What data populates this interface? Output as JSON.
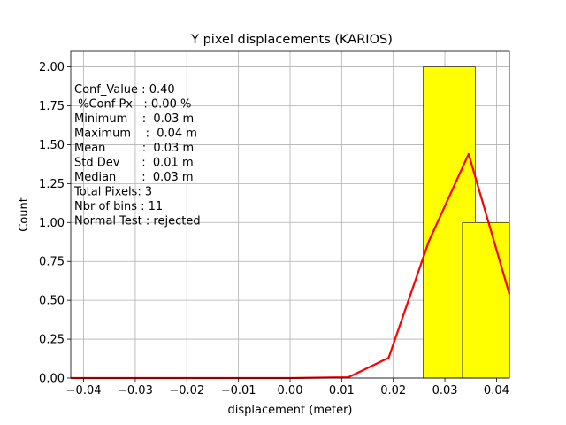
{
  "chart_data": {
    "type": "bar",
    "title": "Y pixel displacements (KARIOS)",
    "xlabel": "displacement (meter)",
    "ylabel": "Count",
    "xlim": [
      -0.0425,
      0.0425
    ],
    "ylim": [
      0,
      2.1
    ],
    "x_ticks": [
      -0.04,
      -0.03,
      -0.02,
      -0.01,
      0.0,
      0.01,
      0.02,
      0.03,
      0.04
    ],
    "x_tick_labels": [
      "−0.04",
      "−0.03",
      "−0.02",
      "−0.01",
      "0.00",
      "0.01",
      "0.02",
      "0.03",
      "0.04"
    ],
    "y_ticks": [
      0,
      0.25,
      0.5,
      0.75,
      1.0,
      1.25,
      1.5,
      1.75,
      2.0
    ],
    "y_tick_labels": [
      "0.00",
      "0.25",
      "0.50",
      "0.75",
      "1.00",
      "1.25",
      "1.50",
      "1.75",
      "2.00"
    ],
    "grid": true,
    "bar_color": "#ffff00",
    "bar_edge_color": "#000000",
    "bars": [
      {
        "x0": 0.0258,
        "x1": 0.0359,
        "count": 2
      },
      {
        "x0": 0.0334,
        "x1": 0.0425,
        "count": 1
      }
    ],
    "curve": {
      "color": "#ff0000",
      "points": [
        [
          -0.0425,
          0.0
        ],
        [
          -0.03,
          0.0
        ],
        [
          -0.02,
          0.0
        ],
        [
          -0.01,
          0.0
        ],
        [
          0.0,
          0.0
        ],
        [
          0.0113,
          0.005
        ],
        [
          0.0191,
          0.13
        ],
        [
          0.0269,
          0.88
        ],
        [
          0.0346,
          1.44
        ],
        [
          0.0425,
          0.54
        ]
      ]
    },
    "stats_lines": [
      "Conf_Value : 0.40",
      " %Conf Px   : 0.00 %",
      "Minimum    :  0.03 m",
      "Maximum    :  0.04 m",
      "Mean          :  0.03 m",
      "Std Dev      :  0.01 m",
      "Median       :  0.03 m",
      "Total Pixels: 3",
      "Nbr of bins : 11",
      "Normal Test : rejected"
    ]
  }
}
